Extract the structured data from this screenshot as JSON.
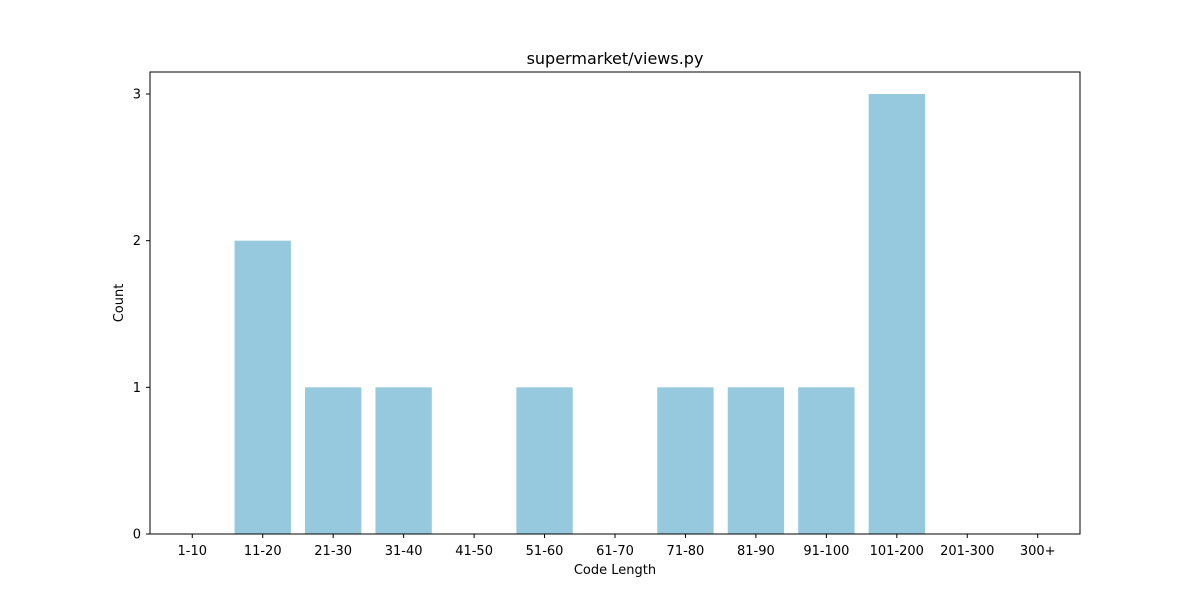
{
  "chart_data": {
    "type": "bar",
    "title": "supermarket/views.py",
    "xlabel": "Code Length",
    "ylabel": "Count",
    "categories": [
      "1-10",
      "11-20",
      "21-30",
      "31-40",
      "41-50",
      "51-60",
      "61-70",
      "71-80",
      "81-90",
      "91-100",
      "101-200",
      "201-300",
      "300+"
    ],
    "values": [
      0,
      2,
      1,
      1,
      0,
      1,
      0,
      1,
      1,
      1,
      3,
      0,
      0
    ],
    "ylim": [
      0,
      3.15
    ],
    "yticks": [
      0,
      1,
      2,
      3
    ],
    "grid": false,
    "legend": "none",
    "bar_color": "#96c9dd"
  }
}
